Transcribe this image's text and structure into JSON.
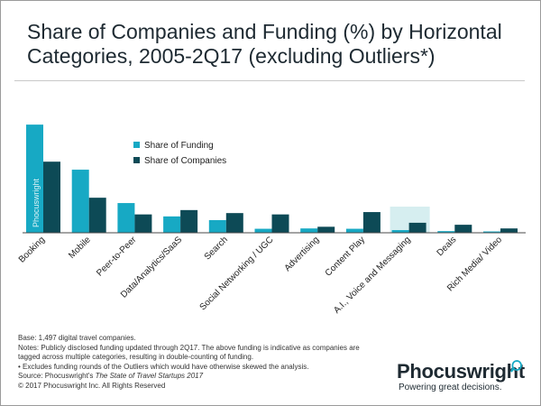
{
  "title": "Share of Companies and Funding (%) by Horizontal Categories, 2005-2Q17 (excluding Outliers*)",
  "colors": {
    "funding": "#17a9c4",
    "companies": "#0d4a56",
    "highlight": "#d6eef0",
    "axis": "#4a4a4a"
  },
  "watermark": "Phocuswright",
  "chart_data": {
    "type": "bar",
    "categories": [
      "Booking",
      "Mobile",
      "Peer-to-Peer",
      "Data/Analytics/SaaS",
      "Search",
      "Social Networking / UGC",
      "Advertising",
      "Content Play",
      "A.I., Voice and Messaging",
      "Deals",
      "Rich Media/ Video"
    ],
    "series": [
      {
        "name": "Share of Funding",
        "values": [
          32.4,
          18.9,
          8.9,
          4.9,
          3.8,
          1.2,
          1.3,
          1.2,
          0.8,
          0.5,
          0.4
        ]
      },
      {
        "name": "Share of Companies",
        "values": [
          21.3,
          10.5,
          5.5,
          6.8,
          5.9,
          5.5,
          1.8,
          6.2,
          3.0,
          2.4,
          1.3
        ]
      }
    ],
    "highlighted_category": "A.I., Voice and Messaging",
    "legend_position": "inside-top-center",
    "grid": false
  },
  "footnotes": {
    "base": "Base: 1,497 digital travel companies.",
    "notes": "Notes: Publicly disclosed funding updated through 2Q17. The above funding is indicative as companies are tagged across multiple categories, resulting in double-counting of funding.",
    "outliers": "• Excludes funding rounds of the Outliers which would have otherwise skewed the analysis.",
    "source_prefix": "Source: Phocuswright's ",
    "source_title": "The State of Travel Startups 2017",
    "copyright": "© 2017 Phocuswright Inc. All Rights Reserved"
  },
  "logo": {
    "name": "Phocuswright",
    "tagline": "Powering great decisions."
  }
}
